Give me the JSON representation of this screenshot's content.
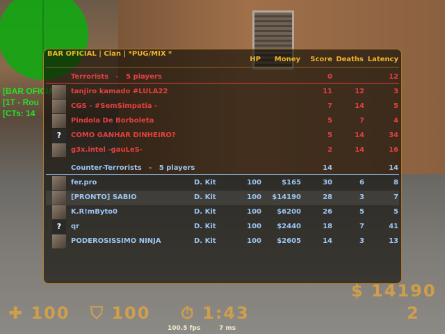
{
  "hud_bg_text": [
    "[BAR OFICIAL",
    "[1T - Rou",
    "[CTs: 14"
  ],
  "scoreboard": {
    "title": "BAR OFICIAL | Clan | *PUG/MIX *",
    "columns": [
      "HP",
      "Money",
      "Score",
      "Deaths",
      "Latency"
    ],
    "terrorists": {
      "label": "Terrorists   -   5 players",
      "score": "0",
      "latency": "12",
      "color": "#e44040",
      "players": [
        {
          "name": "tanjiro kamado #LULA22",
          "score": "11",
          "deaths": "12",
          "latency": "3"
        },
        {
          "name": "CGS - #SemSimpatia -",
          "score": "7",
          "deaths": "14",
          "latency": "5"
        },
        {
          "name": "Pindola De Borboleta",
          "score": "5",
          "deaths": "7",
          "latency": "4"
        },
        {
          "name": "COMO GANHAR DINHEIRO?",
          "score": "5",
          "deaths": "14",
          "latency": "34",
          "avatar": "?"
        },
        {
          "name": "g3x.intel -gauLeS-",
          "score": "2",
          "deaths": "14",
          "latency": "16"
        }
      ]
    },
    "cts": {
      "label": "Counter-Terrorists   -   5 players",
      "score": "14",
      "latency": "14",
      "color": "#9cc4f0",
      "players": [
        {
          "name": "fer.pro",
          "kit": "D. Kit",
          "hp": "100",
          "money": "$165",
          "score": "30",
          "deaths": "6",
          "latency": "8"
        },
        {
          "name": "[PRONTO] SABIO",
          "kit": "D. Kit",
          "hp": "100",
          "money": "$14190",
          "score": "28",
          "deaths": "3",
          "latency": "7"
        },
        {
          "name": "K.R!mByto0",
          "kit": "D. Kit",
          "hp": "100",
          "money": "$6200",
          "score": "26",
          "deaths": "5",
          "latency": "5"
        },
        {
          "name": "qr",
          "kit": "D. Kit",
          "hp": "100",
          "money": "$2440",
          "score": "18",
          "deaths": "7",
          "latency": "41",
          "avatar": "?"
        },
        {
          "name": "PODEROSISSIMO NINJA",
          "kit": "D. Kit",
          "hp": "100",
          "money": "$2605",
          "score": "14",
          "deaths": "3",
          "latency": "13"
        }
      ]
    }
  },
  "hud": {
    "health": "100",
    "armor": "100",
    "timer": "1:43",
    "money": "$ 14190",
    "ammo": "2",
    "fps": "100.5 fps",
    "ping": "7 ms"
  }
}
